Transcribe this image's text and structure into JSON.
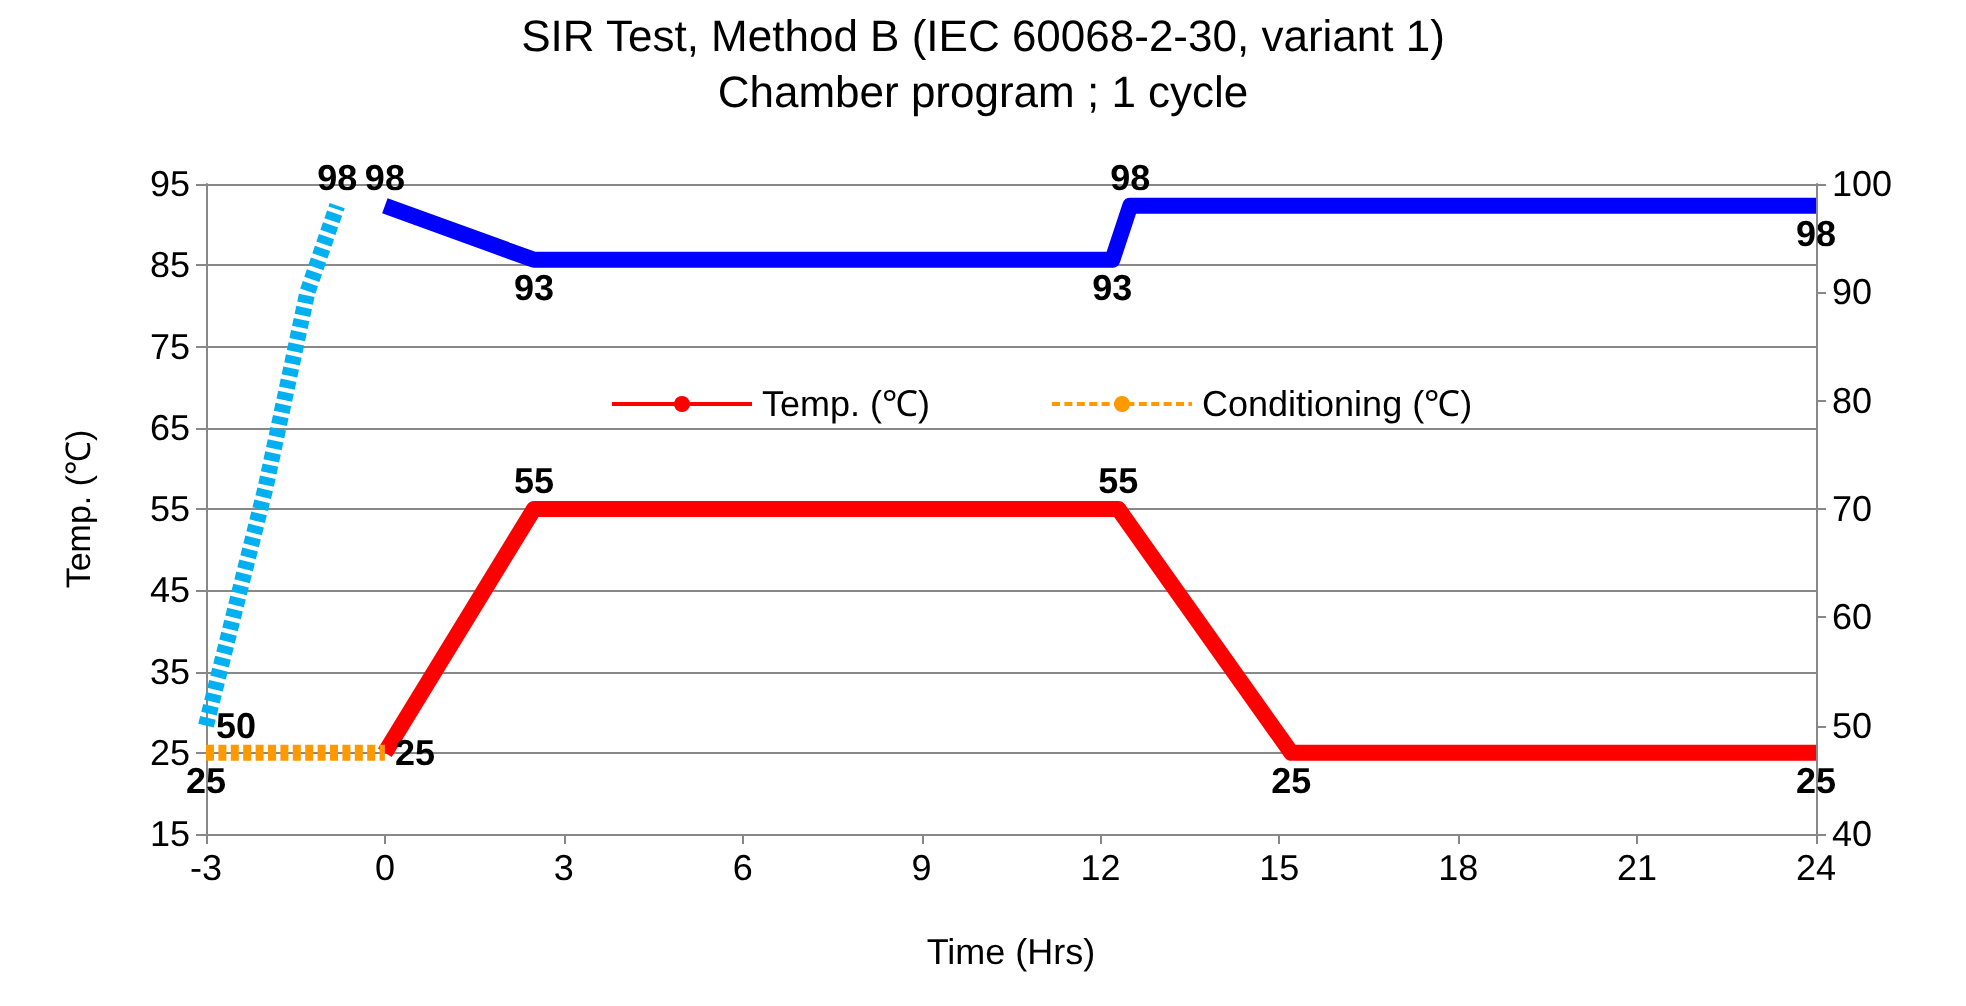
{
  "chart_data": {
    "type": "line",
    "title": "SIR Test, Method B (IEC 60068-2-30, variant 1)",
    "subtitle": "Chamber program ; 1 cycle",
    "xlabel": "Time (Hrs)",
    "ylabel": "Temp. (℃)",
    "xlim": [
      -3,
      24
    ],
    "xticks": [
      -3,
      0,
      3,
      6,
      9,
      12,
      15,
      18,
      21,
      24
    ],
    "ylim": [
      15,
      95
    ],
    "yticks": [
      15,
      25,
      35,
      45,
      55,
      65,
      75,
      85,
      95
    ],
    "y2lim": [
      40,
      100
    ],
    "y2ticks": [
      40,
      50,
      60,
      70,
      80,
      90,
      100
    ],
    "grid": "y",
    "legend": "top",
    "marker": "none",
    "series": [
      {
        "name": "Temp. (℃)",
        "color": "#ff0000",
        "line_style": "solid",
        "x": [
          0,
          2.5,
          12.3,
          15.2,
          24
        ],
        "values": [
          25,
          55,
          55,
          25,
          25
        ],
        "value_labels": [
          "25",
          "55",
          "55",
          "25",
          "25"
        ]
      },
      {
        "name": "Conditioning (℃)",
        "color": "#ff9900",
        "line_style": "dashed",
        "x": [
          -3,
          0
        ],
        "values": [
          25,
          25
        ],
        "value_labels": [
          "25",
          null
        ]
      },
      {
        "color": "#00b0f0",
        "line_style": "dashed",
        "axis": "y2",
        "x": [
          -3,
          -2,
          -1.3,
          -0.8
        ],
        "values": [
          50,
          72,
          90,
          98
        ],
        "value_labels": [
          "50",
          null,
          null,
          "98"
        ]
      },
      {
        "color": "#0000ff",
        "line_style": "solid",
        "axis": "y2",
        "x": [
          0,
          2.5,
          12.2,
          12.5,
          24
        ],
        "values": [
          98,
          93,
          93,
          98,
          98
        ],
        "value_labels": [
          "98",
          "93",
          "93",
          "98",
          "98"
        ]
      }
    ]
  }
}
